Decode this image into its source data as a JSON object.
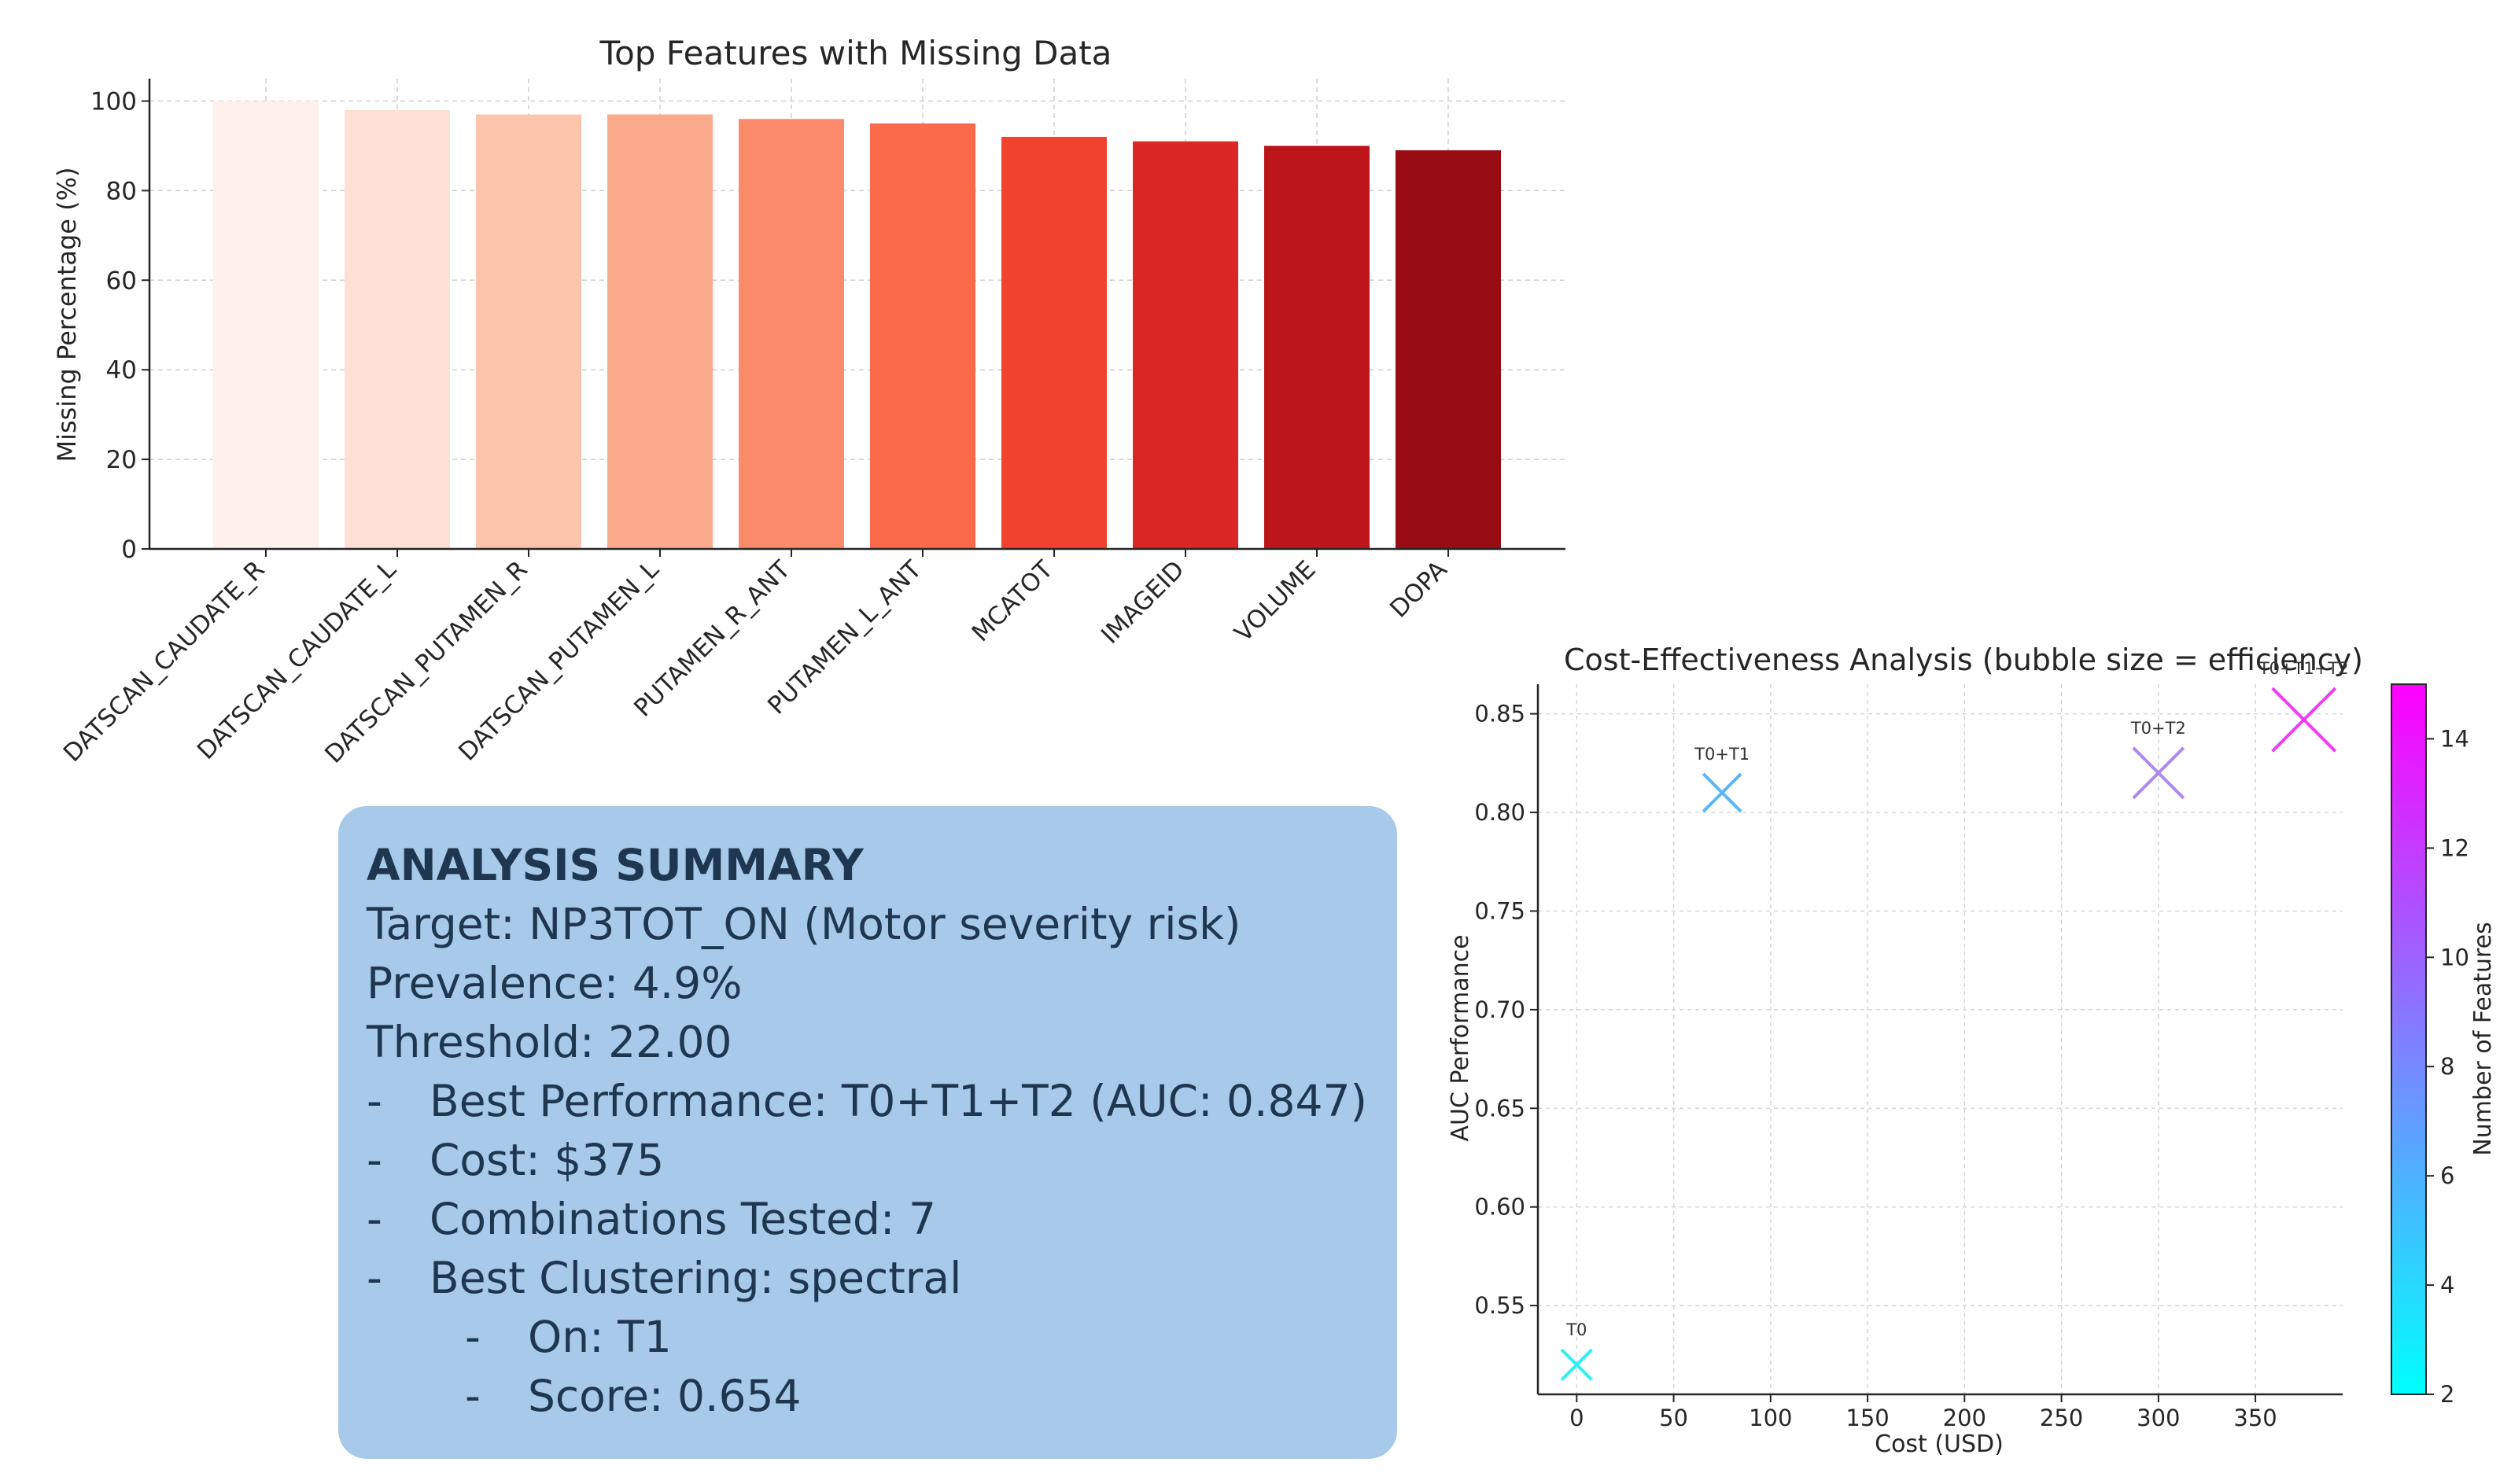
{
  "chart_data": [
    {
      "type": "bar",
      "title": "Top Features with Missing Data",
      "xlabel": "",
      "ylabel": "Missing Percentage (%)",
      "ylim": [
        0,
        105
      ],
      "yticks": [
        0,
        20,
        40,
        60,
        80,
        100
      ],
      "grid": true,
      "categories": [
        "DATSCAN_CAUDATE_R",
        "DATSCAN_CAUDATE_L",
        "DATSCAN_PUTAMEN_R",
        "DATSCAN_PUTAMEN_L",
        "PUTAMEN_R_ANT",
        "PUTAMEN_L_ANT",
        "MCATOT",
        "IMAGEID",
        "VOLUME",
        "DOPA"
      ],
      "values": [
        100,
        98,
        97,
        97,
        96,
        95,
        92,
        91,
        90,
        89
      ],
      "colors": [
        "#fff0ec",
        "#fee1d4",
        "#fcc5ab",
        "#fcaa8c",
        "#fc8b6b",
        "#fb6a4a",
        "#f14230",
        "#da2723",
        "#bc151a",
        "#980c14"
      ]
    },
    {
      "type": "scatter",
      "title": "Cost-Effectiveness Analysis (bubble size = efficiency)",
      "xlabel": "Cost (USD)",
      "ylabel": "AUC Performance",
      "xlim": [
        -20,
        395
      ],
      "ylim": [
        0.505,
        0.865
      ],
      "xticks": [
        0,
        50,
        100,
        150,
        200,
        250,
        300,
        350
      ],
      "yticks": [
        0.55,
        0.6,
        0.65,
        0.7,
        0.75,
        0.8,
        0.85
      ],
      "ytick_labels": [
        "0.55",
        "0.60",
        "0.65",
        "0.70",
        "0.75",
        "0.80",
        "0.85"
      ],
      "grid": true,
      "points": [
        {
          "label": "T0",
          "x": 0,
          "y": 0.52,
          "features": 2,
          "color": "#33f0f0"
        },
        {
          "label": "T0+T1",
          "x": 75,
          "y": 0.81,
          "features": 5,
          "color": "#5bb6f2"
        },
        {
          "label": "T0+T2",
          "x": 300,
          "y": 0.82,
          "features": 10,
          "color": "#ad87f0"
        },
        {
          "label": "T0+T1+T2",
          "x": 375,
          "y": 0.847,
          "features": 15,
          "color": "#f23cf0"
        }
      ],
      "colorbar": {
        "label": "Number of Features",
        "range": [
          2,
          15
        ],
        "ticks": [
          2,
          4,
          6,
          8,
          10,
          12,
          14
        ],
        "colors": [
          "#00ffff",
          "#ff00ff"
        ]
      }
    }
  ],
  "summary": {
    "heading": "ANALYSIS SUMMARY",
    "target": "Target: NP3TOT_ON (Motor severity risk)",
    "prevalence": "Prevalence: 4.9%",
    "threshold": "Threshold: 22.00",
    "bullet_marker": "-",
    "best_performance": "Best Performance: T0+T1+T2 (AUC: 0.847)",
    "cost": "Cost: $375",
    "combinations": "Combinations Tested: 7",
    "best_clustering": "Best Clustering: spectral",
    "clustering_on": "On: T1",
    "clustering_score": "Score: 0.654"
  }
}
